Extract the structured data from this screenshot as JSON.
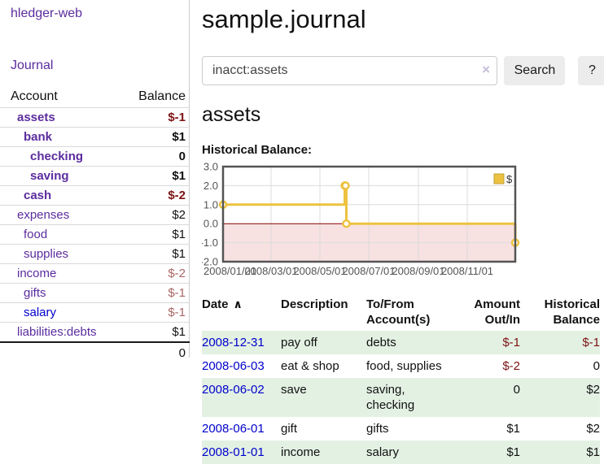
{
  "colors": {
    "accent": "#5b2c9e",
    "link_blue": "#0000cc",
    "negative": "#7d1313",
    "negative_light": "#ab6666",
    "row_stripe": "#e3f1e3"
  },
  "sidebar": {
    "brand": "hledger-web",
    "nav_journal": "Journal",
    "accounts_header": {
      "account": "Account",
      "balance": "Balance"
    },
    "accounts": [
      {
        "name": "assets",
        "depth": 0,
        "balance": "$-1",
        "bold": true,
        "neg": true
      },
      {
        "name": "bank",
        "depth": 1,
        "balance": "$1",
        "bold": true
      },
      {
        "name": "checking",
        "depth": 2,
        "balance": "0",
        "bold": true
      },
      {
        "name": "saving",
        "depth": 2,
        "balance": "$1",
        "bold": true
      },
      {
        "name": "cash",
        "depth": 1,
        "balance": "$-2",
        "bold": true,
        "neg": true
      },
      {
        "name": "expenses",
        "depth": 0,
        "balance": "$2"
      },
      {
        "name": "food",
        "depth": 1,
        "balance": "$1"
      },
      {
        "name": "supplies",
        "depth": 1,
        "balance": "$1"
      },
      {
        "name": "income",
        "depth": 0,
        "balance": "$-2",
        "neg_light": true
      },
      {
        "name": "gifts",
        "depth": 1,
        "balance": "$-1",
        "neg_light": true
      },
      {
        "name": "salary",
        "depth": 1,
        "balance": "$-1",
        "neg_light": true,
        "blue": true
      },
      {
        "name": "liabilities:debts",
        "depth": 0,
        "balance": "$1"
      }
    ],
    "total": "0"
  },
  "header": {
    "title": "sample.journal"
  },
  "search": {
    "value": "inacct:assets",
    "button": "Search",
    "help": "?"
  },
  "icons": {
    "sort_ascending": "∧",
    "clear_search": "×"
  },
  "account_page": {
    "heading": "assets",
    "chart_label": "Historical Balance:"
  },
  "chart_data": {
    "type": "line",
    "title": "Historical Balance:",
    "steps": true,
    "series": [
      {
        "name": "$",
        "color": "#edc240",
        "points": [
          [
            "2008-01-01",
            1
          ],
          [
            "2008-06-01",
            2
          ],
          [
            "2008-06-02",
            2
          ],
          [
            "2008-06-03",
            0
          ],
          [
            "2008-12-31",
            -1
          ]
        ]
      }
    ],
    "xlim": [
      "2008-01-01",
      "2008-12-31"
    ],
    "ylim": [
      -2,
      3
    ],
    "y_ticks": [
      3,
      2,
      1,
      0,
      -1,
      -2
    ],
    "x_ticks": [
      [
        "2008-01-01",
        "2008/01/01"
      ],
      [
        "2008-03-01",
        "2008/03/01"
      ],
      [
        "2008-05-01",
        "2008/05/01"
      ],
      [
        "2008-07-01",
        "2008/07/01"
      ],
      [
        "2008-09-01",
        "2008/09/01"
      ],
      [
        "2008-11-01",
        "2008/11/01"
      ]
    ],
    "legend_position": "top-right",
    "grid": true,
    "border_color": "#545454",
    "zero_line_color": "#8b0000",
    "negative_region_color": "#f8e1e1",
    "tick_label_color": "#545454"
  },
  "register": {
    "columns": {
      "date": "Date",
      "description": "Description",
      "tofrom_line1": "To/From",
      "tofrom_line2": "Account(s)",
      "amount_line1": "Amount",
      "amount_line2": "Out/In",
      "balance_line1": "Historical",
      "balance_line2": "Balance"
    },
    "rows": [
      {
        "date": "2008-12-31",
        "description": "pay off",
        "accounts": "debts",
        "amount": "$-1",
        "amount_neg": true,
        "balance": "$-1",
        "balance_neg": true
      },
      {
        "date": "2008-06-03",
        "description": "eat & shop",
        "accounts": "food, supplies",
        "amount": "$-2",
        "amount_neg": true,
        "balance": "0"
      },
      {
        "date": "2008-06-02",
        "description": "save",
        "accounts": "saving, checking",
        "amount": "0",
        "balance": "$2"
      },
      {
        "date": "2008-06-01",
        "description": "gift",
        "accounts": "gifts",
        "amount": "$1",
        "balance": "$2"
      },
      {
        "date": "2008-01-01",
        "description": "income",
        "accounts": "salary",
        "amount": "$1",
        "balance": "$1"
      }
    ]
  }
}
